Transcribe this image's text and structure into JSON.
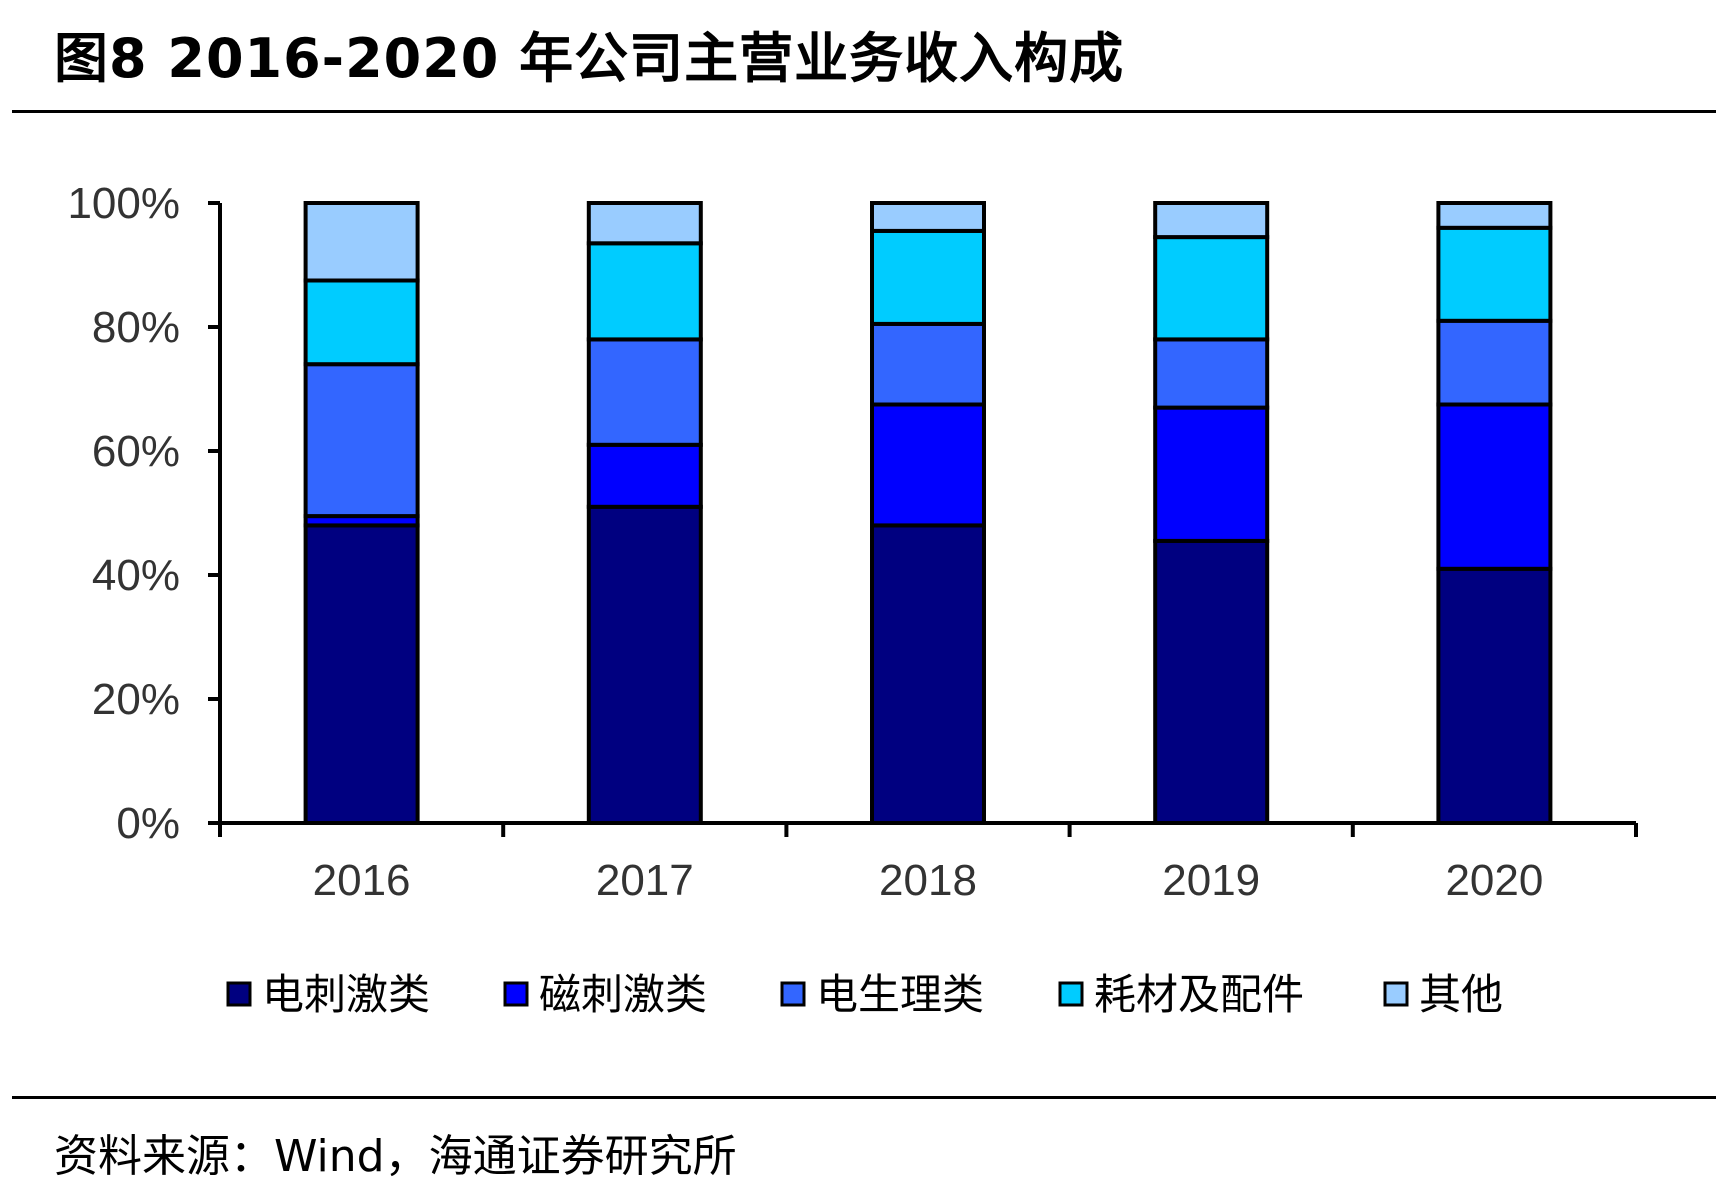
{
  "figure": {
    "title": "图8 2016-2020 年公司主营业务收入构成",
    "source": "资料来源：Wind，海通证券研究所"
  },
  "chart_data": {
    "type": "bar",
    "stacked": true,
    "categories": [
      "2016",
      "2017",
      "2018",
      "2019",
      "2020"
    ],
    "series": [
      {
        "name": "电刺激类",
        "color": "#000080",
        "values": [
          48,
          51,
          48,
          45.5,
          41
        ]
      },
      {
        "name": "磁刺激类",
        "color": "#0000FF",
        "values": [
          1.5,
          10,
          19.5,
          21.5,
          26.5
        ]
      },
      {
        "name": "电生理类",
        "color": "#3366FF",
        "values": [
          24.5,
          17,
          13,
          11,
          13.5
        ]
      },
      {
        "name": "耗材及配件",
        "color": "#00CCFF",
        "values": [
          13.5,
          15.5,
          15,
          16.5,
          15
        ]
      },
      {
        "name": "其他",
        "color": "#99CCFF",
        "values": [
          12.5,
          6.5,
          4.5,
          5.5,
          4
        ]
      }
    ],
    "ylim": [
      0,
      100
    ],
    "yticks": [
      "0%",
      "20%",
      "40%",
      "60%",
      "80%",
      "100%"
    ],
    "ytick_values": [
      0,
      20,
      40,
      60,
      80,
      100
    ],
    "xlabel": "",
    "ylabel": "",
    "grid": false,
    "legend_position": "bottom"
  }
}
